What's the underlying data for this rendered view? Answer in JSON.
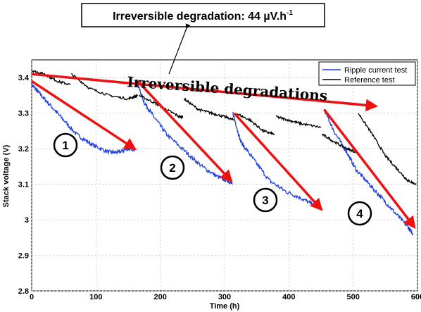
{
  "chart_data": {
    "type": "line",
    "title": "",
    "xlabel": "Time (h)",
    "ylabel": "Stack voltage (V)",
    "xlim": [
      0,
      600
    ],
    "ylim": [
      2.8,
      3.45
    ],
    "xticks": [
      "0",
      "100",
      "200",
      "300",
      "400",
      "500",
      "600"
    ],
    "yticks": [
      "2.8",
      "2.9",
      "3",
      "3.1",
      "3.2",
      "3.3",
      "3.4"
    ],
    "grid": true,
    "legend_position": "top-right",
    "series": [
      {
        "name": "Ripple current test",
        "color": "#1f3fe0",
        "segments": [
          {
            "x": [
              0,
              10,
              25,
              45,
              70,
              95,
              120,
              135,
              150,
              160
            ],
            "y": [
              3.38,
              3.36,
              3.33,
              3.29,
              3.24,
              3.21,
              3.19,
              3.19,
              3.2,
              3.2
            ]
          },
          {
            "x": [
              163,
              175,
              190,
              210,
              240,
              265,
              290,
              305,
              312
            ],
            "y": [
              3.39,
              3.33,
              3.29,
              3.24,
              3.19,
              3.15,
              3.12,
              3.11,
              3.1
            ]
          },
          {
            "x": [
              313,
              325,
              345,
              370,
              395,
              420,
              440,
              452
            ],
            "y": [
              3.3,
              3.22,
              3.17,
              3.11,
              3.08,
              3.06,
              3.04,
              3.03
            ]
          },
          {
            "x": [
              455,
              470,
              490,
              505,
              525,
              545,
              565,
              585,
              593
            ],
            "y": [
              3.31,
              3.25,
              3.19,
              3.14,
              3.1,
              3.06,
              3.02,
              2.98,
              2.96
            ]
          }
        ]
      },
      {
        "name": "Reference test",
        "color": "#000000",
        "segments": [
          {
            "x": [
              0,
              20,
              40,
              60
            ],
            "y": [
              3.42,
              3.41,
              3.39,
              3.38
            ]
          },
          {
            "x": [
              62,
              90,
              120,
              150,
              165
            ],
            "y": [
              3.41,
              3.37,
              3.35,
              3.34,
              3.35
            ]
          },
          {
            "x": [
              167,
              190,
              210,
              230,
              235
            ],
            "y": [
              3.35,
              3.33,
              3.31,
              3.29,
              3.29
            ]
          },
          {
            "x": [
              237,
              260,
              280,
              300,
              315
            ],
            "y": [
              3.34,
              3.31,
              3.3,
              3.29,
              3.28
            ]
          },
          {
            "x": [
              317,
              340,
              360,
              378
            ],
            "y": [
              3.3,
              3.28,
              3.25,
              3.24
            ]
          },
          {
            "x": [
              380,
              400,
              420,
              450
            ],
            "y": [
              3.29,
              3.28,
              3.27,
              3.26
            ]
          },
          {
            "x": [
              452,
              470,
              490,
              505
            ],
            "y": [
              3.24,
              3.22,
              3.2,
              3.19
            ]
          },
          {
            "x": [
              508,
              530,
              550,
              570,
              585,
              598
            ],
            "y": [
              3.3,
              3.24,
              3.18,
              3.14,
              3.11,
              3.1
            ]
          }
        ]
      }
    ],
    "annotations": {
      "callout": "Irreversible degradation: 44 µV.h",
      "callout_superscript": "-1",
      "overlay_title": "Irreversible degradations",
      "circled_numbers": [
        "1",
        "2",
        "3",
        "4"
      ],
      "arrows": [
        {
          "from": [
            0,
            3.41
          ],
          "to": [
            535,
            3.32
          ]
        },
        {
          "from": [
            0,
            3.39
          ],
          "to": [
            160,
            3.2
          ]
        },
        {
          "from": [
            165,
            3.39
          ],
          "to": [
            310,
            3.11
          ]
        },
        {
          "from": [
            315,
            3.3
          ],
          "to": [
            450,
            3.03
          ]
        },
        {
          "from": [
            455,
            3.31
          ],
          "to": [
            595,
            2.98
          ]
        }
      ],
      "arrow_color": "#ee1111"
    }
  }
}
